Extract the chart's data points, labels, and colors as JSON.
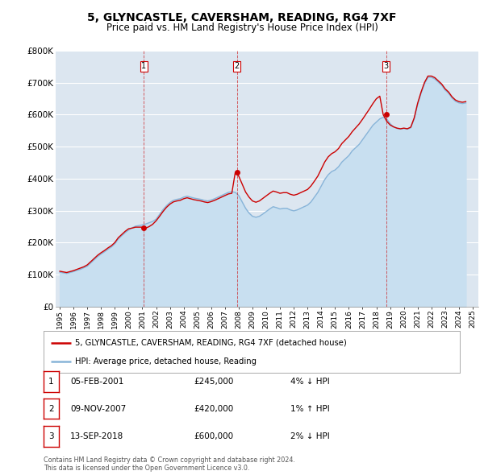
{
  "title": "5, GLYNCASTLE, CAVERSHAM, READING, RG4 7XF",
  "subtitle": "Price paid vs. HM Land Registry's House Price Index (HPI)",
  "ylim": [
    0,
    800000
  ],
  "yticks": [
    0,
    100000,
    200000,
    300000,
    400000,
    500000,
    600000,
    700000,
    800000
  ],
  "ytick_labels": [
    "£0",
    "£100K",
    "£200K",
    "£300K",
    "£400K",
    "£500K",
    "£600K",
    "£700K",
    "£800K"
  ],
  "xlim_start": 1994.7,
  "xlim_end": 2025.4,
  "background_color": "#ffffff",
  "plot_bg_color": "#dce6f0",
  "grid_color": "#ffffff",
  "legend_label_red": "5, GLYNCASTLE, CAVERSHAM, READING, RG4 7XF (detached house)",
  "legend_label_blue": "HPI: Average price, detached house, Reading",
  "sale_dates": [
    2001.09,
    2007.86,
    2018.71
  ],
  "sale_prices": [
    245000,
    420000,
    600000
  ],
  "sale_labels": [
    "1",
    "2",
    "3"
  ],
  "sale_info": [
    {
      "num": "1",
      "date": "05-FEB-2001",
      "price": "£245,000",
      "hpi": "4% ↓ HPI"
    },
    {
      "num": "2",
      "date": "09-NOV-2007",
      "price": "£420,000",
      "hpi": "1% ↑ HPI"
    },
    {
      "num": "3",
      "date": "13-SEP-2018",
      "price": "£600,000",
      "hpi": "2% ↓ HPI"
    }
  ],
  "footer": "Contains HM Land Registry data © Crown copyright and database right 2024.\nThis data is licensed under the Open Government Licence v3.0.",
  "red_color": "#cc0000",
  "blue_color": "#88b4d8",
  "blue_fill_color": "#c8dff0",
  "dot_color": "#cc0000",
  "hpi_data_x": [
    1995.0,
    1995.25,
    1995.5,
    1995.75,
    1996.0,
    1996.25,
    1996.5,
    1996.75,
    1997.0,
    1997.25,
    1997.5,
    1997.75,
    1998.0,
    1998.25,
    1998.5,
    1998.75,
    1999.0,
    1999.25,
    1999.5,
    1999.75,
    2000.0,
    2000.25,
    2000.5,
    2000.75,
    2001.0,
    2001.25,
    2001.5,
    2001.75,
    2002.0,
    2002.25,
    2002.5,
    2002.75,
    2003.0,
    2003.25,
    2003.5,
    2003.75,
    2004.0,
    2004.25,
    2004.5,
    2004.75,
    2005.0,
    2005.25,
    2005.5,
    2005.75,
    2006.0,
    2006.25,
    2006.5,
    2006.75,
    2007.0,
    2007.25,
    2007.5,
    2007.75,
    2008.0,
    2008.25,
    2008.5,
    2008.75,
    2009.0,
    2009.25,
    2009.5,
    2009.75,
    2010.0,
    2010.25,
    2010.5,
    2010.75,
    2011.0,
    2011.25,
    2011.5,
    2011.75,
    2012.0,
    2012.25,
    2012.5,
    2012.75,
    2013.0,
    2013.25,
    2013.5,
    2013.75,
    2014.0,
    2014.25,
    2014.5,
    2014.75,
    2015.0,
    2015.25,
    2015.5,
    2015.75,
    2016.0,
    2016.25,
    2016.5,
    2016.75,
    2017.0,
    2017.25,
    2017.5,
    2017.75,
    2018.0,
    2018.25,
    2018.5,
    2018.75,
    2019.0,
    2019.25,
    2019.5,
    2019.75,
    2020.0,
    2020.25,
    2020.5,
    2020.75,
    2021.0,
    2021.25,
    2021.5,
    2021.75,
    2022.0,
    2022.25,
    2022.5,
    2022.75,
    2023.0,
    2023.25,
    2023.5,
    2023.75,
    2024.0,
    2024.25,
    2024.5
  ],
  "hpi_data_y": [
    107000,
    105000,
    103000,
    106000,
    109000,
    113000,
    116000,
    121000,
    126000,
    136000,
    146000,
    156000,
    164000,
    171000,
    179000,
    186000,
    196000,
    211000,
    221000,
    231000,
    239000,
    246000,
    251000,
    253000,
    255000,
    258000,
    262000,
    266000,
    273000,
    288000,
    303000,
    315000,
    325000,
    332000,
    335000,
    337000,
    342000,
    345000,
    342000,
    339000,
    337000,
    335000,
    332000,
    330000,
    333000,
    337000,
    342000,
    347000,
    352000,
    357000,
    359000,
    357000,
    347000,
    327000,
    307000,
    292000,
    282000,
    279000,
    282000,
    289000,
    297000,
    305000,
    312000,
    309000,
    305000,
    307000,
    307000,
    302000,
    299000,
    302000,
    307000,
    312000,
    317000,
    327000,
    342000,
    357000,
    377000,
    397000,
    412000,
    422000,
    427000,
    437000,
    452000,
    462000,
    472000,
    487000,
    497000,
    507000,
    522000,
    537000,
    552000,
    567000,
    577000,
    587000,
    592000,
    587000,
    572000,
    562000,
    557000,
    555000,
    557000,
    555000,
    559000,
    587000,
    632000,
    667000,
    697000,
    717000,
    717000,
    712000,
    702000,
    692000,
    677000,
    667000,
    652000,
    642000,
    637000,
    635000,
    637000
  ],
  "red_data_x": [
    1995.0,
    1995.25,
    1995.5,
    1995.75,
    1996.0,
    1996.25,
    1996.5,
    1996.75,
    1997.0,
    1997.25,
    1997.5,
    1997.75,
    1998.0,
    1998.25,
    1998.5,
    1998.75,
    1999.0,
    1999.25,
    1999.5,
    1999.75,
    2000.0,
    2000.25,
    2000.5,
    2000.75,
    2001.0,
    2001.25,
    2001.5,
    2001.75,
    2002.0,
    2002.25,
    2002.5,
    2002.75,
    2003.0,
    2003.25,
    2003.5,
    2003.75,
    2004.0,
    2004.25,
    2004.5,
    2004.75,
    2005.0,
    2005.25,
    2005.5,
    2005.75,
    2006.0,
    2006.25,
    2006.5,
    2006.75,
    2007.0,
    2007.25,
    2007.5,
    2007.75,
    2008.0,
    2008.25,
    2008.5,
    2008.75,
    2009.0,
    2009.25,
    2009.5,
    2009.75,
    2010.0,
    2010.25,
    2010.5,
    2010.75,
    2011.0,
    2011.25,
    2011.5,
    2011.75,
    2012.0,
    2012.25,
    2012.5,
    2012.75,
    2013.0,
    2013.25,
    2013.5,
    2013.75,
    2014.0,
    2014.25,
    2014.5,
    2014.75,
    2015.0,
    2015.25,
    2015.5,
    2015.75,
    2016.0,
    2016.25,
    2016.5,
    2016.75,
    2017.0,
    2017.25,
    2017.5,
    2017.75,
    2018.0,
    2018.25,
    2018.5,
    2018.75,
    2019.0,
    2019.25,
    2019.5,
    2019.75,
    2020.0,
    2020.25,
    2020.5,
    2020.75,
    2021.0,
    2021.25,
    2021.5,
    2021.75,
    2022.0,
    2022.25,
    2022.5,
    2022.75,
    2023.0,
    2023.25,
    2023.5,
    2023.75,
    2024.0,
    2024.25,
    2024.5
  ],
  "red_data_y": [
    110000,
    108000,
    106000,
    109000,
    112000,
    116000,
    120000,
    124000,
    130000,
    140000,
    150000,
    160000,
    168000,
    175000,
    183000,
    190000,
    200000,
    215000,
    225000,
    235000,
    243000,
    245000,
    248000,
    248000,
    248000,
    245000,
    250000,
    257000,
    268000,
    282000,
    297000,
    310000,
    320000,
    327000,
    330000,
    332000,
    337000,
    340000,
    337000,
    334000,
    332000,
    330000,
    327000,
    325000,
    328000,
    332000,
    337000,
    342000,
    347000,
    352000,
    354000,
    420000,
    408000,
    383000,
    358000,
    342000,
    330000,
    326000,
    330000,
    338000,
    346000,
    354000,
    361000,
    358000,
    354000,
    356000,
    356000,
    351000,
    348000,
    351000,
    356000,
    361000,
    366000,
    377000,
    392000,
    408000,
    430000,
    452000,
    468000,
    478000,
    484000,
    494000,
    510000,
    521000,
    532000,
    547000,
    559000,
    571000,
    586000,
    602000,
    618000,
    635000,
    650000,
    658000,
    600000,
    580000,
    568000,
    562000,
    558000,
    556000,
    558000,
    556000,
    561000,
    590000,
    636000,
    671000,
    701000,
    721000,
    721000,
    716000,
    706000,
    696000,
    681000,
    671000,
    656000,
    646000,
    641000,
    639000,
    641000
  ]
}
